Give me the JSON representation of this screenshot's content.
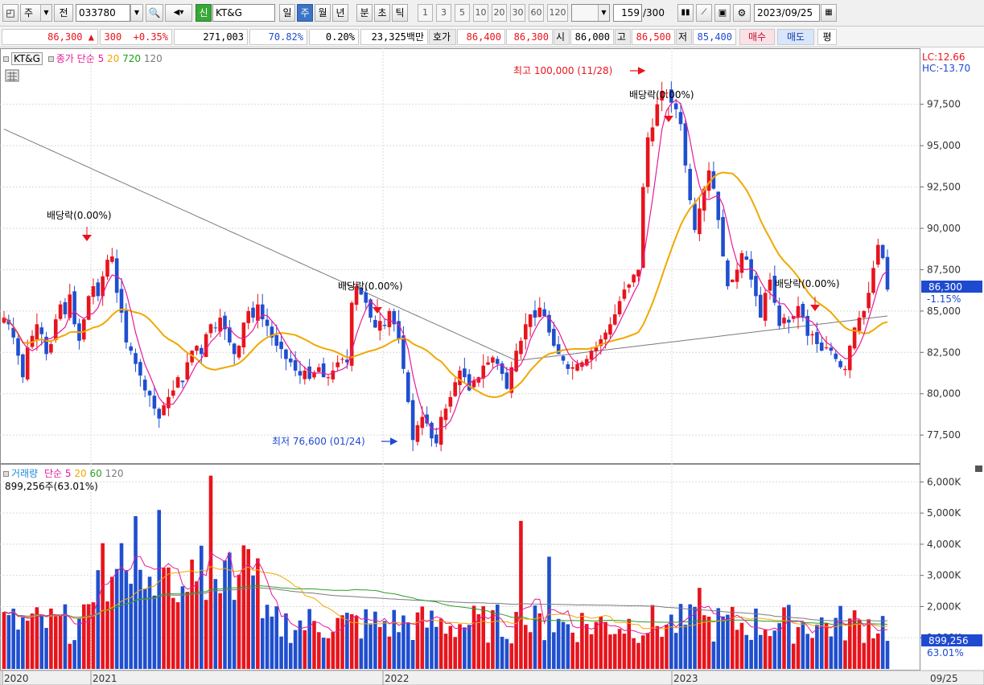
{
  "toolbar": {
    "period_kind": "주",
    "prev_label": "전",
    "code": "033780",
    "badge": "신",
    "name": "KT&G",
    "periods": [
      "일",
      "주",
      "월",
      "년",
      "분",
      "초",
      "틱"
    ],
    "active_period": "주",
    "minute_options": [
      "1",
      "3",
      "5",
      "10",
      "20",
      "30",
      "60",
      "120"
    ],
    "count": "159",
    "count_total": "/300",
    "date": "2023/09/25"
  },
  "quote": {
    "price": "86,300",
    "change_arrow": "▲",
    "change": "300",
    "change_pct": "+0.35%",
    "volume": "271,003",
    "vol_ratio": "70.82%",
    "turnover": "0.20%",
    "amount": "23,325백만",
    "hoga_label": "호가",
    "ask": "86,400",
    "bid": "86,300",
    "open_label": "시",
    "open": "86,000",
    "high_label": "고",
    "high": "86,500",
    "low_label": "저",
    "low": "85,400",
    "buy_label": "매수",
    "sell_label": "매도",
    "eval_label": "평"
  },
  "colors": {
    "up": "#e8141c",
    "down": "#1f4fcf",
    "ma5": "#e61a9a",
    "ma20": "#f0a800",
    "ma60": "#2a9e2a",
    "ma120": "#7a7a7a",
    "ma720": "#18a018"
  },
  "price_legend": {
    "name": "KT&G",
    "label": "종가 단순",
    "ma": [
      "5",
      "20",
      "720",
      "120"
    ]
  },
  "volume_legend": {
    "name": "거래량",
    "label": "단순",
    "ma": [
      "5",
      "20",
      "60",
      "120"
    ],
    "last": "899,256주(63.01%)"
  },
  "right_info": {
    "lc": "LC:12.66",
    "hc": "HC:-13.70",
    "current": "86,300",
    "current_pct": "-1.15%",
    "vol_current": "899,256",
    "vol_pct": "63.01%"
  },
  "annotations": {
    "high": "최고 100,000 (11/28)",
    "low": "최저 76,600 (01/24)",
    "dividend": "배당락(0.00%)"
  },
  "x_labels": [
    "2020",
    "2021",
    "2022",
    "2023",
    "09/25"
  ],
  "chart_data": [
    {
      "type": "candlestick",
      "y_ticks": [
        "97,500",
        "95,000",
        "92,500",
        "90,000",
        "87,500",
        "85,000",
        "82,500",
        "80,000",
        "77,500"
      ],
      "ylim": [
        76000,
        100500
      ],
      "high": {
        "value": 100000,
        "date": "11/28"
      },
      "low": {
        "value": 76600,
        "date": "01/24"
      },
      "series_close": [
        84.6,
        84.2,
        83.4,
        82.3,
        81.0,
        82.8,
        83.5,
        84.2,
        83.6,
        82.4,
        83.0,
        84.5,
        85.4,
        84.8,
        86.0,
        84.2,
        83.2,
        84.5,
        85.9,
        86.5,
        85.9,
        87.1,
        88.1,
        88.3,
        86.1,
        84.9,
        83.1,
        82.6,
        81.8,
        81.1,
        80.2,
        79.9,
        79.1,
        78.5,
        79.3,
        79.8,
        80.2,
        81.0,
        80.7,
        81.9,
        82.6,
        82.9,
        82.4,
        83.6,
        84.2,
        84.0,
        84.6,
        83.9,
        83.1,
        82.4,
        82.9,
        84.3,
        85.0,
        84.6,
        85.4,
        84.5,
        84.1,
        83.4,
        82.9,
        82.7,
        82.1,
        81.9,
        81.4,
        81.1,
        81.4,
        80.9,
        81.3,
        81.6,
        81.0,
        81.0,
        81.4,
        81.9,
        82.1,
        81.9,
        85.5,
        86.5,
        86.0,
        85.5,
        84.6,
        84.0,
        84.4,
        84.1,
        85.0,
        84.2,
        83.3,
        81.5,
        79.5,
        77.2,
        78.1,
        78.6,
        78.2,
        77.3,
        77.0,
        78.6,
        79.1,
        79.8,
        80.7,
        81.4,
        81.0,
        80.2,
        80.8,
        81.0,
        81.7,
        81.9,
        82.2,
        81.8,
        81.2,
        80.3,
        81.6,
        82.6,
        83.2,
        84.2,
        84.8,
        84.6,
        85.2,
        84.7,
        83.7,
        82.9,
        82.4,
        82.0,
        81.5,
        81.6,
        81.8,
        81.9,
        82.1,
        82.6,
        82.8,
        83.3,
        83.7,
        84.2,
        84.8,
        85.6,
        86.3,
        86.6,
        87.2,
        87.5,
        92.5,
        95.5,
        96.1,
        97.5,
        98.3,
        98.2,
        97.6,
        97.2,
        96.3,
        93.8,
        91.7,
        89.9,
        91.2,
        92.4,
        93.5,
        92.4,
        90.5,
        88.3,
        86.5,
        86.9,
        87.5,
        88.5,
        88.1,
        86.9,
        85.9,
        84.6,
        86.1,
        86.9,
        85.5,
        84.1,
        84.6,
        84.3,
        84.7,
        85.3,
        84.6,
        83.5,
        83.6,
        83.0,
        82.6,
        82.8,
        82.6,
        82.1,
        81.6,
        81.5,
        82.9,
        84.0,
        84.6,
        85.0,
        86.1,
        87.6,
        89.0,
        88.2,
        86.3
      ]
    },
    {
      "type": "bar",
      "name": "volume",
      "y_ticks": [
        "6,000K",
        "5,000K",
        "4,000K",
        "3,000K",
        "2,000K",
        "1,000K"
      ],
      "ylim": [
        0,
        6500
      ],
      "last_value": 899256
    }
  ]
}
